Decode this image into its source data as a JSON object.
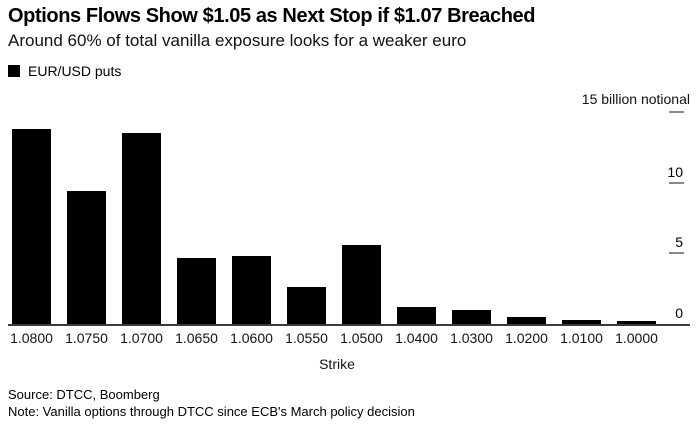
{
  "header": {
    "title": "Options Flows Show $1.05 as Next Stop if $1.07 Breached",
    "subtitle": "Around 60% of total vanilla exposure looks for a weaker euro"
  },
  "legend": {
    "swatch_icon": "black-square-swatch",
    "swatch_color": "#000000",
    "label": "EUR/USD puts"
  },
  "chart_data": {
    "type": "bar",
    "title": "Options Flows Show $1.05 as Next Stop if $1.07 Breached",
    "subtitle": "Around 60% of total vanilla exposure looks for a weaker euro",
    "series_name": "EUR/USD puts",
    "categories": [
      "1.0800",
      "1.0750",
      "1.0700",
      "1.0650",
      "1.0600",
      "1.0550",
      "1.0500",
      "1.0400",
      "1.0300",
      "1.0200",
      "1.0100",
      "1.0000"
    ],
    "values": [
      13.8,
      9.4,
      13.5,
      4.7,
      4.8,
      2.6,
      5.6,
      1.2,
      1.0,
      0.5,
      0.3,
      0.2
    ],
    "xlabel": "Strike",
    "ylabel": "",
    "y_axis_unit_label": "15 billion notional",
    "y_ticks": [
      0,
      5,
      10,
      15
    ],
    "ylim": [
      0,
      15
    ],
    "y_axis_side": "right",
    "grid": false,
    "bar_color": "#000000",
    "legend_position": "top-left"
  },
  "footer": {
    "source": "Source: DTCC, Boomberg",
    "note": "Note: Vanilla options through DTCC since ECB's March policy decision"
  }
}
